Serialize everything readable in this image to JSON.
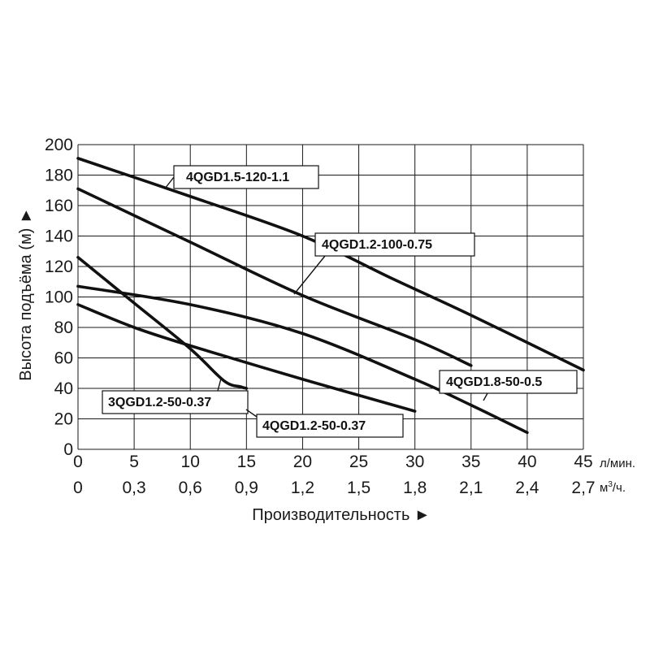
{
  "chart_data": {
    "type": "line",
    "ylabel": "Высота подъёма (м) ►",
    "xlabel": "Производительность ►",
    "x_unit": "л/мин.",
    "x2_unit_base": "м",
    "x2_unit_sup": "3",
    "x2_unit_tail": "/ч.",
    "xlim": [
      0,
      45
    ],
    "ylim": [
      0,
      200
    ],
    "x_ticks": [
      "0",
      "5",
      "10",
      "15",
      "20",
      "25",
      "30",
      "35",
      "40",
      "45"
    ],
    "x2_ticks": [
      "0",
      "0,3",
      "0,6",
      "0,9",
      "1,2",
      "1,5",
      "1,8",
      "2,1",
      "2,4",
      "2,7"
    ],
    "y_ticks": [
      "0",
      "20",
      "40",
      "60",
      "80",
      "100",
      "120",
      "140",
      "160",
      "180",
      "200"
    ],
    "grid": true,
    "series": [
      {
        "name": "4QGD1.5-120-1.1",
        "x": [
          0,
          10,
          20,
          28,
          35,
          45
        ],
        "y": [
          191,
          166,
          140,
          112,
          88,
          52
        ]
      },
      {
        "name": "4QGD1.2-100-0.75",
        "x": [
          0,
          10,
          20,
          30,
          35
        ],
        "y": [
          171,
          136,
          101,
          72,
          55
        ]
      },
      {
        "name": "4QGD1.8-50-0.5",
        "x": [
          0,
          10,
          20,
          30,
          35,
          40
        ],
        "y": [
          107,
          95,
          76,
          46,
          29,
          11
        ]
      },
      {
        "name": "3QGD1.2-50-0.37",
        "x": [
          0,
          5,
          10,
          13,
          14.5,
          15
        ],
        "y": [
          126,
          96,
          66,
          45,
          41,
          40
        ]
      },
      {
        "name": "4QGD1.2-50-0.37",
        "x": [
          0,
          5,
          10,
          20,
          30
        ],
        "y": [
          95,
          80,
          68,
          46,
          25
        ]
      }
    ]
  }
}
